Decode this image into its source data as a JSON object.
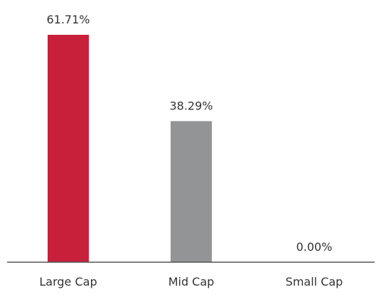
{
  "chart_data": {
    "type": "bar",
    "categories": [
      "Large Cap",
      "Mid Cap",
      "Small Cap"
    ],
    "values": [
      61.71,
      38.29,
      0.0
    ],
    "data_labels": [
      "61.71%",
      "38.29%",
      "0.00%"
    ],
    "colors": [
      "#c8203a",
      "#939495",
      "#939495"
    ],
    "axis_color": "#555555",
    "ylim": [
      0,
      61.71
    ],
    "grid": false,
    "legend": "none",
    "title": "",
    "xlabel": "",
    "ylabel": ""
  }
}
